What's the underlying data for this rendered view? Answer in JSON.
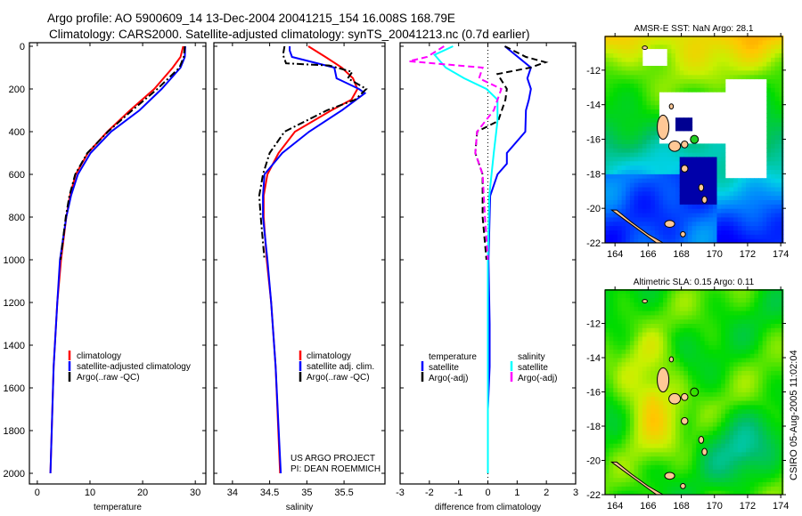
{
  "title_line1": "Argo profile: AO 5900609_14 13-Dec-2004 20041215_154 16.008S 168.79E",
  "title_line2": "Climatology: CARS2000. Satellite-adjusted climatology: synTS_20041213.nc (0.7d earlier)",
  "credit": [
    "US ARGO PROJECT",
    "PI: DEAN ROEMMICH"
  ],
  "timestamp": "CSIRO 05-Aug-2005 11:02:04",
  "colors": {
    "climatology": "#ff0000",
    "satellite": "#0000ff",
    "argo": "#000000",
    "sal_satellite": "#00ffff",
    "sal_argo": "#ff00ff"
  },
  "chart_data": [
    {
      "type": "line",
      "xlabel": "temperature",
      "ylabel": "",
      "xlim": [
        -1.5,
        32
      ],
      "ylim": [
        2000,
        0
      ],
      "xticks": [
        0,
        10,
        20,
        30
      ],
      "yticks": [
        0,
        200,
        400,
        600,
        800,
        1000,
        1200,
        1400,
        1600,
        1800,
        2000
      ],
      "legend": [
        "climatology",
        "satellite-adjusted climatology",
        "Argo(..raw -QC)"
      ],
      "legend_placement": "bottom-left",
      "series": [
        {
          "name": "climatology",
          "color": "#ff0000",
          "style": "solid",
          "depth": [
            0,
            50,
            100,
            200,
            300,
            400,
            500,
            600,
            700,
            800,
            1000,
            1200,
            1500,
            2000
          ],
          "values": [
            27.7,
            27.2,
            25.7,
            22.2,
            17.6,
            13.3,
            9.6,
            7.3,
            6.2,
            5.5,
            4.5,
            3.8,
            3.1,
            2.5
          ]
        },
        {
          "name": "satellite-adjusted climatology",
          "color": "#0000ff",
          "style": "solid",
          "depth": [
            0,
            50,
            100,
            200,
            300,
            400,
            500,
            600,
            700,
            800,
            1000,
            1200,
            1500,
            2000
          ],
          "values": [
            28.1,
            28.0,
            27.2,
            23.6,
            19.4,
            14.0,
            10.1,
            7.7,
            6.4,
            5.5,
            4.3,
            3.8,
            3.1,
            2.5
          ]
        },
        {
          "name": "Argo(..raw -QC)",
          "color": "#000000",
          "style": "dashdot",
          "depth": [
            0,
            50,
            100,
            200,
            300,
            400,
            500,
            600,
            700,
            800,
            1000
          ],
          "values": [
            28.0,
            27.8,
            27.0,
            22.8,
            18.0,
            13.4,
            9.5,
            7.2,
            6.1,
            5.4,
            4.4
          ]
        }
      ]
    },
    {
      "type": "line",
      "xlabel": "salinity",
      "xlim": [
        33.75,
        36.05
      ],
      "ylim": [
        2000,
        0
      ],
      "xticks": [
        34,
        34.5,
        35,
        35.5
      ],
      "legend": [
        "climatology",
        "satellite adj. clim.",
        "Argo(..raw -QC)"
      ],
      "legend_placement": "bottom-right",
      "series": [
        {
          "name": "climatology",
          "color": "#ff0000",
          "style": "solid",
          "depth": [
            0,
            50,
            100,
            150,
            200,
            250,
            300,
            400,
            500,
            600,
            700,
            800,
            1000,
            1200,
            1500,
            2000
          ],
          "values": [
            35.02,
            35.25,
            35.47,
            35.62,
            35.68,
            35.6,
            35.33,
            34.84,
            34.62,
            34.47,
            34.42,
            34.42,
            34.46,
            34.52,
            34.58,
            34.64
          ]
        },
        {
          "name": "satellite adj. clim.",
          "color": "#0000ff",
          "style": "solid",
          "depth": [
            0,
            20,
            50,
            100,
            150,
            200,
            220,
            300,
            400,
            500,
            600,
            700,
            800,
            1000,
            1200,
            1500,
            2000
          ],
          "values": [
            34.77,
            34.77,
            34.8,
            35.37,
            35.4,
            35.7,
            35.78,
            35.47,
            35.03,
            34.67,
            34.43,
            34.41,
            34.41,
            34.47,
            34.52,
            34.58,
            34.65
          ]
        },
        {
          "name": "Argo(..raw -QC)",
          "color": "#000000",
          "style": "dashdot",
          "depth": [
            0,
            40,
            80,
            90,
            120,
            150,
            200,
            250,
            300,
            400,
            500,
            600,
            700,
            800,
            1000
          ],
          "values": [
            34.7,
            34.68,
            34.72,
            35.3,
            35.61,
            35.55,
            35.8,
            35.65,
            35.27,
            34.7,
            34.5,
            34.41,
            34.36,
            34.38,
            34.43
          ]
        }
      ]
    },
    {
      "type": "line",
      "xlabel": "difference from climatology",
      "xlim": [
        -3,
        3
      ],
      "ylim": [
        2000,
        0
      ],
      "xticks": [
        -3,
        -2,
        -1,
        0,
        1,
        2,
        3
      ],
      "legend": {
        "temperature_header": "temperature",
        "salinity_header": "salinity",
        "entries": [
          "satellite",
          "Argo(-adj)",
          "satellite",
          "Argo(-adj)"
        ]
      },
      "legend_placement": "bottom",
      "series": [
        {
          "name": "temperature satellite",
          "color": "#0000ff",
          "style": "solid",
          "depth": [
            0,
            100,
            150,
            200,
            250,
            300,
            400,
            500,
            550,
            600,
            700,
            1000,
            1300,
            1500,
            1700,
            2000
          ],
          "values": [
            0.58,
            1.47,
            1.35,
            1.47,
            1.4,
            1.3,
            1.28,
            0.65,
            0.65,
            0.33,
            0.08,
            0.02,
            0.06,
            0.06,
            0.0,
            0.0
          ]
        },
        {
          "name": "temperature Argo(-adj)",
          "color": "#000000",
          "style": "dashed",
          "depth": [
            0,
            50,
            75,
            100,
            130,
            200,
            250,
            350,
            400,
            500,
            600,
            800,
            1000
          ],
          "values": [
            0.58,
            1.3,
            1.97,
            1.45,
            0.33,
            0.65,
            0.6,
            0.35,
            -0.37,
            -0.43,
            -0.18,
            -0.18,
            -0.05
          ]
        },
        {
          "name": "salinity satellite",
          "color": "#00ffff",
          "style": "solid",
          "depth": [
            0,
            40,
            100,
            150,
            200,
            250,
            350,
            500,
            700,
            1000,
            2000
          ],
          "values": [
            -1.19,
            -1.82,
            -1.44,
            -0.81,
            -0.05,
            0.33,
            0.33,
            0.2,
            0.05,
            0.0,
            0.0
          ]
        },
        {
          "name": "salinity Argo(-adj)",
          "color": "#ff00ff",
          "style": "dashed",
          "depth": [
            0,
            50,
            70,
            100,
            150,
            200,
            300,
            400,
            500,
            600,
            800,
            1000
          ],
          "values": [
            -1.5,
            -2.08,
            -2.7,
            -0.18,
            -0.3,
            0.46,
            0.2,
            -0.37,
            -0.43,
            -0.18,
            -0.1,
            0.0
          ]
        }
      ]
    },
    {
      "type": "heatmap",
      "title": "AMSR-E SST: NaN Argo: 28.1",
      "xlim": [
        163.4,
        174.1
      ],
      "ylim": [
        -22,
        -10.05
      ],
      "xticks": [
        164,
        166,
        168,
        170,
        172,
        174
      ],
      "yticks": [
        -12,
        -14,
        -16,
        -18,
        -20,
        -22
      ],
      "argo_position": {
        "lon": 168.79,
        "lat": -16.008
      }
    },
    {
      "type": "heatmap",
      "title": "Altimetric SLA: 0.15 Argo: 0.11",
      "xlim": [
        163.4,
        174.1
      ],
      "ylim": [
        -22,
        -10.05
      ],
      "xticks": [
        164,
        166,
        168,
        170,
        172,
        174
      ],
      "yticks": [
        -12,
        -14,
        -16,
        -18,
        -20,
        -22
      ],
      "argo_position": {
        "lon": 168.79,
        "lat": -16.008
      }
    }
  ]
}
